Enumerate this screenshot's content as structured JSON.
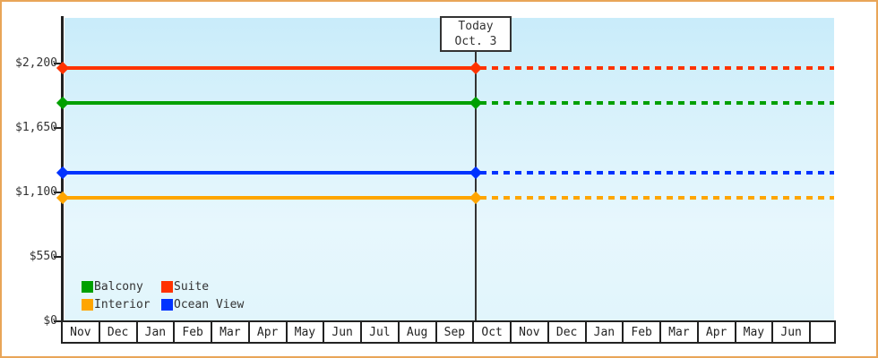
{
  "window": {
    "frame_border_color": "#e9a558",
    "background_color": "#ffffff"
  },
  "chart_data": {
    "type": "line",
    "title": "",
    "description": "Cruise cabin price history/forecast: flat price lines per cabin category, solid up to the Today (Oct. 3) marker, dotted projection afterwards",
    "x_categories": [
      "Nov",
      "Dec",
      "Jan",
      "Feb",
      "Mar",
      "Apr",
      "May",
      "Jun",
      "Jul",
      "Aug",
      "Sep",
      "Oct",
      "Nov",
      "Dec",
      "Jan",
      "Feb",
      "Mar",
      "Apr",
      "May",
      "Jun"
    ],
    "y_tick_labels": [
      "$0",
      "$550",
      "$1,100",
      "$1,650",
      "$2,200"
    ],
    "y_tick_values": [
      0,
      550,
      1100,
      1650,
      2200
    ],
    "ylim": [
      0,
      2590
    ],
    "grid": "off",
    "plot_bg_top_color": "#c9ecfa",
    "plot_bg_bottom_color": "#e1f5fc",
    "series": [
      {
        "name": "Suite",
        "color": "#ff3300",
        "value": 2160
      },
      {
        "name": "Balcony",
        "color": "#00a000",
        "value": 1865
      },
      {
        "name": "Ocean View",
        "color": "#0033ff",
        "value": 1270
      },
      {
        "name": "Interior",
        "color": "#ffa500",
        "value": 1055
      }
    ],
    "legend_rows": [
      [
        "Balcony",
        "Suite"
      ],
      [
        "Interior",
        "Ocean View"
      ]
    ],
    "legend_position": "bottom-left inside plot",
    "today_marker": {
      "label_line1": "Today",
      "label_line2": "Oct. 3",
      "x_category": "Oct"
    }
  }
}
